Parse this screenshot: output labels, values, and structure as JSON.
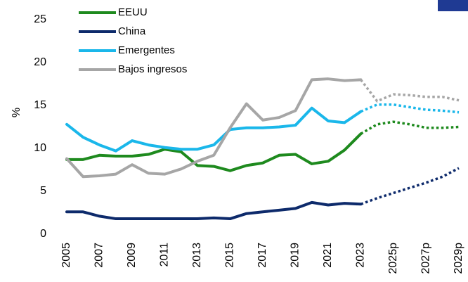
{
  "chart_data": {
    "type": "line",
    "y_label": "%",
    "categories": [
      "2005",
      null,
      "2007",
      null,
      "2009",
      null,
      "2011",
      null,
      "2013",
      null,
      "2015",
      null,
      "2017",
      null,
      "2019",
      null,
      "2021",
      null,
      "2023",
      null,
      "2025p",
      null,
      "2027p",
      null,
      "2029p"
    ],
    "projected_from": "2023",
    "ylim": [
      0,
      25
    ],
    "yticks": [
      0,
      5,
      10,
      15,
      20,
      25
    ],
    "series": [
      {
        "name": "EEUU",
        "color": "#1e8a1e",
        "values": [
          8.7,
          8.7,
          9.2,
          9.1,
          9.1,
          9.3,
          9.9,
          9.6,
          8.0,
          7.9,
          7.4,
          8.0,
          8.3,
          9.2,
          9.3,
          8.2,
          8.5,
          9.8,
          11.7,
          12.8,
          13.1,
          12.8,
          12.4,
          12.4,
          12.5
        ]
      },
      {
        "name": "China",
        "color": "#0d2a6b",
        "values": [
          2.6,
          2.6,
          2.1,
          1.8,
          1.8,
          1.8,
          1.8,
          1.8,
          1.8,
          1.9,
          1.8,
          2.4,
          2.6,
          2.8,
          3.0,
          3.7,
          3.4,
          3.6,
          3.5,
          4.2,
          4.8,
          5.4,
          6.0,
          6.7,
          7.7
        ]
      },
      {
        "name": "Emergentes",
        "color": "#1ab7ea",
        "values": [
          12.8,
          11.3,
          10.4,
          9.7,
          10.9,
          10.4,
          10.1,
          9.9,
          9.9,
          10.4,
          12.2,
          12.4,
          12.4,
          12.5,
          12.7,
          14.7,
          13.2,
          13.0,
          14.3,
          15.1,
          15.1,
          14.8,
          14.5,
          14.4,
          14.2
        ]
      },
      {
        "name": "Bajos ingresos",
        "color": "#a6a6a6",
        "values": [
          8.8,
          6.7,
          6.8,
          7.0,
          8.1,
          7.1,
          7.0,
          7.6,
          8.5,
          9.2,
          12.4,
          15.2,
          13.3,
          13.6,
          14.4,
          18.0,
          18.1,
          17.9,
          18.0,
          15.5,
          16.3,
          16.2,
          16.0,
          16.0,
          15.6
        ]
      }
    ]
  }
}
